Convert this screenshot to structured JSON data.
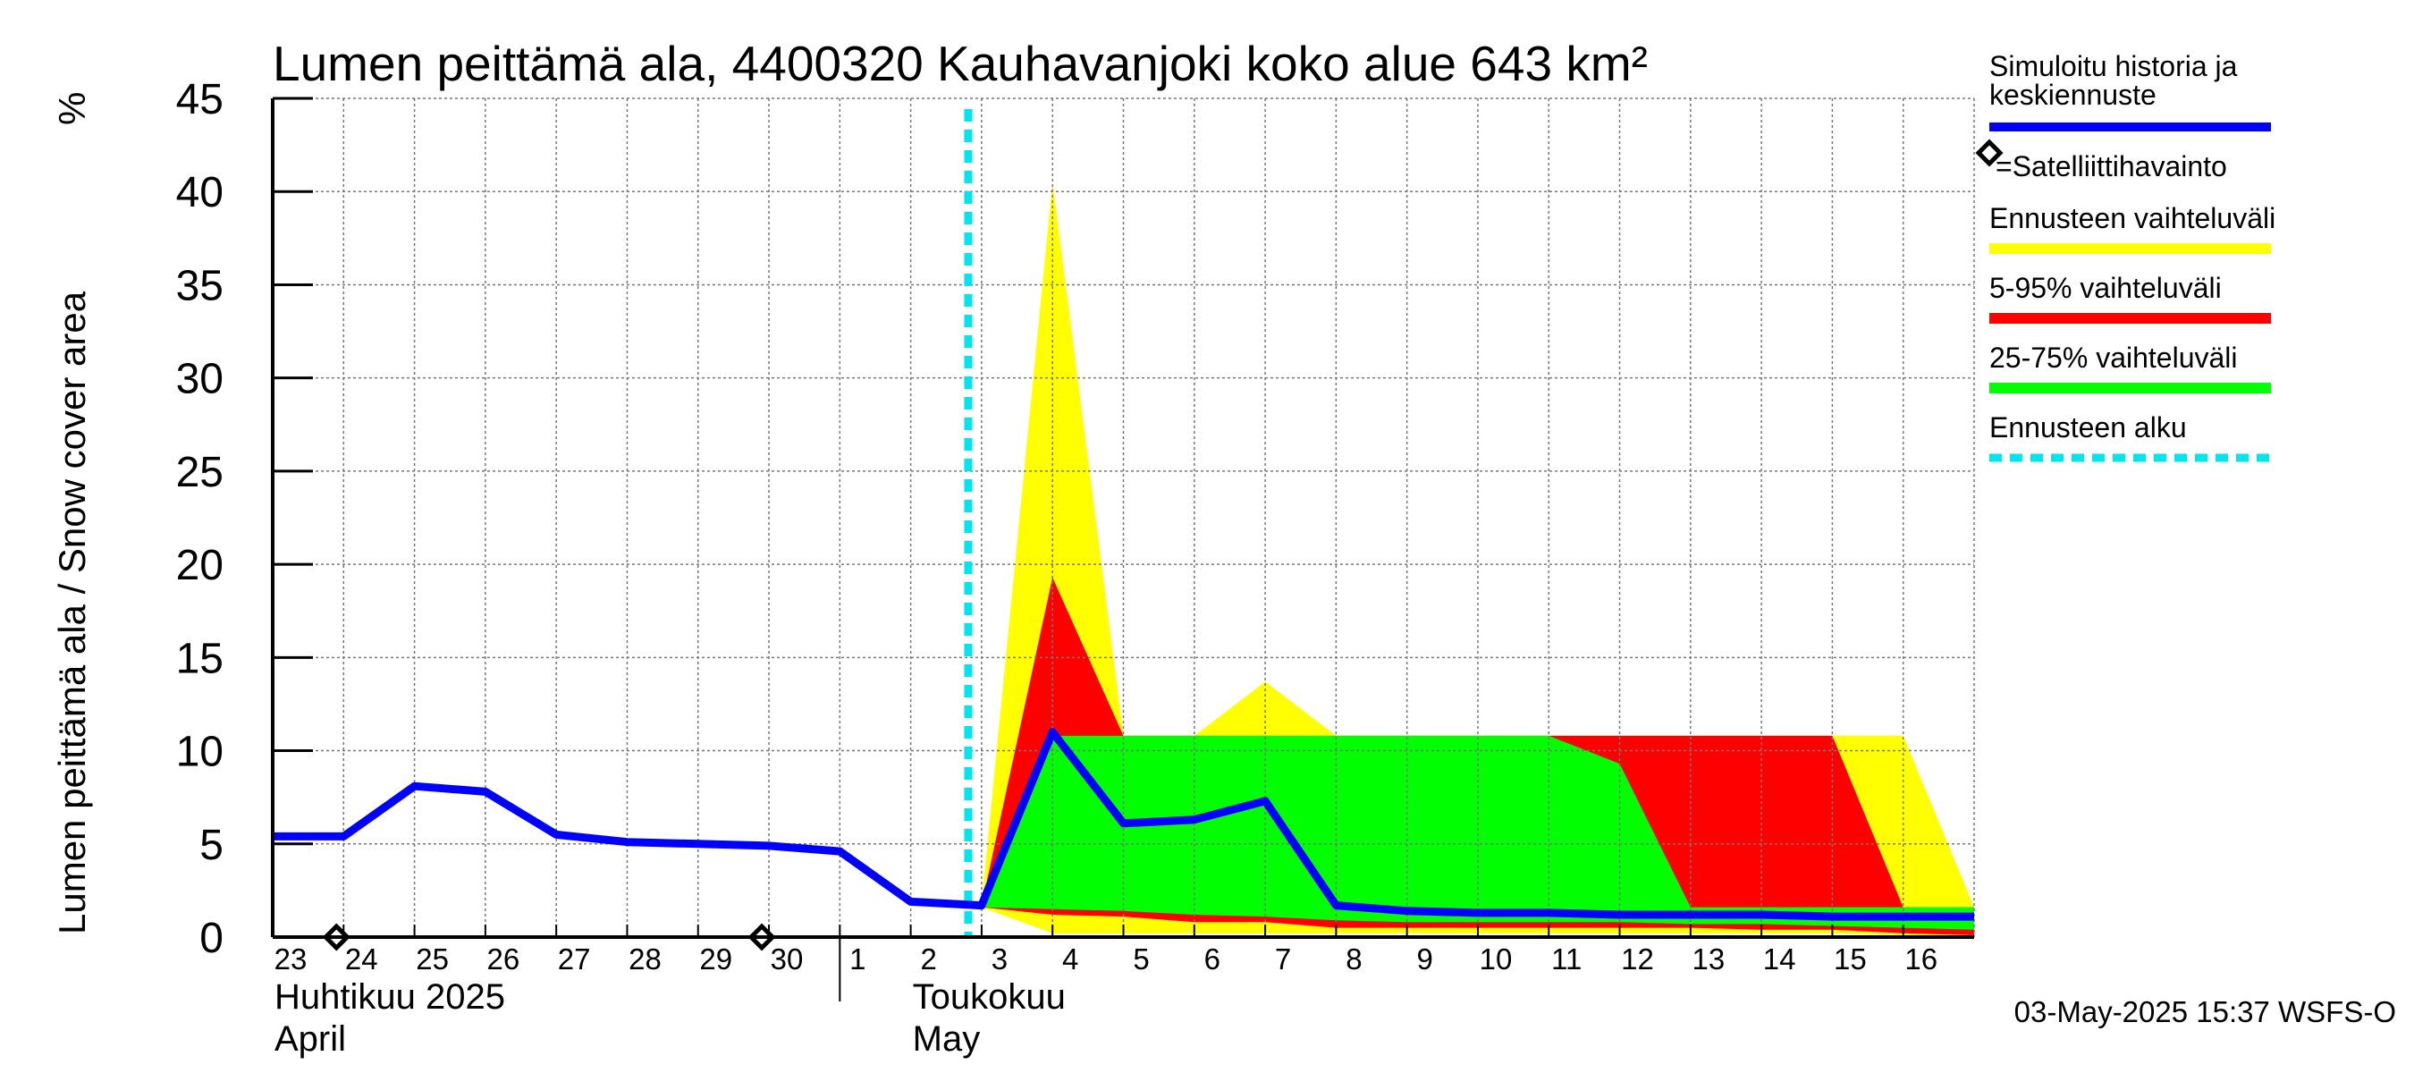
{
  "chart_data": {
    "type": "area",
    "title": "Lumen peittämä ala, 4400320 Kauhavanjoki koko alue 643 km²",
    "ylabel": "Lumen peittämä ala / Snow cover area",
    "yunit": "%",
    "ylim": [
      0,
      45
    ],
    "yticks": [
      0,
      5,
      10,
      15,
      20,
      25,
      30,
      35,
      40,
      45
    ],
    "xlim": [
      0,
      24
    ],
    "x_tick_labels": [
      {
        "x": 0,
        "label": "23"
      },
      {
        "x": 1,
        "label": "24"
      },
      {
        "x": 2,
        "label": "25"
      },
      {
        "x": 3,
        "label": "26"
      },
      {
        "x": 4,
        "label": "27"
      },
      {
        "x": 5,
        "label": "28"
      },
      {
        "x": 6,
        "label": "29"
      },
      {
        "x": 7,
        "label": "30"
      },
      {
        "x": 8,
        "label": "1"
      },
      {
        "x": 9,
        "label": "2"
      },
      {
        "x": 10,
        "label": "3"
      },
      {
        "x": 11,
        "label": "4"
      },
      {
        "x": 12,
        "label": "5"
      },
      {
        "x": 13,
        "label": "6"
      },
      {
        "x": 14,
        "label": "7"
      },
      {
        "x": 15,
        "label": "8"
      },
      {
        "x": 16,
        "label": "9"
      },
      {
        "x": 17,
        "label": "10"
      },
      {
        "x": 18,
        "label": "11"
      },
      {
        "x": 19,
        "label": "12"
      },
      {
        "x": 20,
        "label": "13"
      },
      {
        "x": 21,
        "label": "14"
      },
      {
        "x": 22,
        "label": "15"
      },
      {
        "x": 23,
        "label": "16"
      }
    ],
    "month_labels": [
      {
        "x": 0,
        "lines": [
          "Huhtikuu  2025",
          "April"
        ]
      },
      {
        "x": 9,
        "lines": [
          "Toukokuu",
          "May"
        ]
      }
    ],
    "month_separator_x": 8,
    "forecast_start_x": 10,
    "series": [
      {
        "name": "Ennusteen vaihteluväli",
        "kind": "band",
        "color": "#ffff00",
        "x": [
          10,
          11,
          12,
          13,
          14,
          15,
          16,
          17,
          18,
          19,
          20,
          21,
          22,
          23,
          24
        ],
        "upper": [
          1.8,
          40.5,
          10.8,
          10.8,
          13.7,
          10.8,
          10.8,
          10.8,
          10.8,
          10.8,
          10.8,
          10.8,
          10.8,
          10.8,
          1.6
        ],
        "lower": [
          1.6,
          0.2,
          0.2,
          0.2,
          0.2,
          0.2,
          0.2,
          0.2,
          0.2,
          0.2,
          0.2,
          0.2,
          0.2,
          0.1,
          0.1
        ]
      },
      {
        "name": "5-95% vaihteluväli",
        "kind": "band",
        "color": "#ff0000",
        "x": [
          10,
          11,
          12,
          13,
          14,
          15,
          16,
          17,
          18,
          19,
          20,
          21,
          22,
          23,
          24
        ],
        "upper": [
          1.7,
          19.3,
          10.8,
          10.8,
          10.8,
          10.8,
          10.8,
          10.8,
          10.8,
          10.8,
          10.8,
          10.8,
          10.8,
          1.6,
          1.6
        ],
        "lower": [
          1.6,
          1.2,
          1.1,
          0.8,
          0.8,
          0.5,
          0.5,
          0.5,
          0.5,
          0.5,
          0.5,
          0.4,
          0.4,
          0.2,
          0.1
        ]
      },
      {
        "name": "25-75% vaihteluväli",
        "kind": "band",
        "color": "#00ff00",
        "x": [
          10,
          11,
          12,
          13,
          14,
          15,
          16,
          17,
          18,
          19,
          20,
          21,
          22,
          23,
          24
        ],
        "upper": [
          1.7,
          10.8,
          10.8,
          10.8,
          10.8,
          10.8,
          10.8,
          10.8,
          10.8,
          9.3,
          1.6,
          1.6,
          1.6,
          1.6,
          1.6
        ],
        "lower": [
          1.6,
          1.5,
          1.4,
          1.2,
          1.1,
          0.9,
          0.8,
          0.8,
          0.8,
          0.8,
          0.7,
          0.7,
          0.6,
          0.5,
          0.4
        ]
      },
      {
        "name": "Simuloitu historia ja keskiennuste",
        "kind": "line",
        "color": "#0000ff",
        "x": [
          0,
          1,
          2,
          3,
          4,
          5,
          6,
          7,
          8,
          9,
          10,
          11,
          12,
          13,
          14,
          15,
          16,
          17,
          18,
          19,
          20,
          21,
          22,
          23,
          24
        ],
        "values": [
          5.4,
          5.4,
          8.1,
          7.8,
          5.5,
          5.1,
          5.0,
          4.9,
          4.6,
          1.9,
          1.7,
          11.0,
          6.1,
          6.3,
          7.3,
          1.7,
          1.4,
          1.3,
          1.3,
          1.2,
          1.2,
          1.2,
          1.1,
          1.1,
          1.1
        ]
      }
    ],
    "satellite_observations": [
      {
        "x": 1,
        "value": 0
      },
      {
        "x": 7,
        "value": 0
      }
    ],
    "grid": true
  },
  "legend": {
    "simulated_line1": "Simuloitu historia ja",
    "simulated_line2": "keskiennuste",
    "satellite": "=Satelliittihavainto",
    "full_range": "Ennusteen vaihteluväli",
    "range_5_95": "5-95% vaihteluväli",
    "range_25_75": "25-75% vaihteluväli",
    "forecast_start": "Ennusteen alku"
  },
  "colors": {
    "simulated": "#0000ff",
    "full_range": "#ffff00",
    "range_5_95": "#ff0000",
    "range_25_75": "#00ff00",
    "forecast_start": "#00e5ee"
  },
  "footer": {
    "timestamp": "03-May-2025 15:37 WSFS-O"
  }
}
